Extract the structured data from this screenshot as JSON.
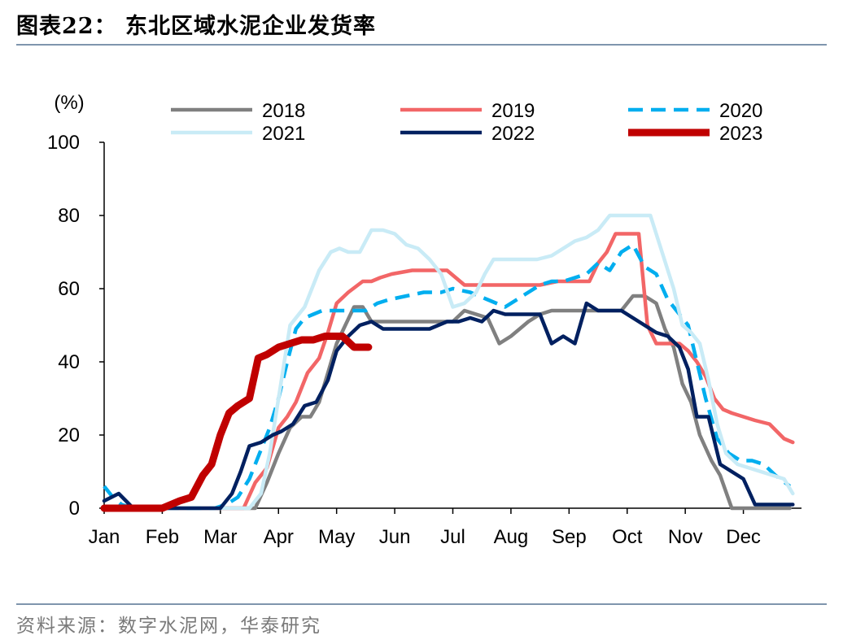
{
  "header": {
    "title": "图表22： 东北区域水泥企业发货率"
  },
  "footer": {
    "source": "资料来源：数字水泥网，华泰研究"
  },
  "chart_data": {
    "type": "line",
    "ylabel": "(%)",
    "ylim": [
      0,
      100
    ],
    "yticks": [
      0,
      20,
      40,
      60,
      80,
      100
    ],
    "xlim": [
      0,
      12
    ],
    "xticks": [
      {
        "label": "Jan",
        "x": 0
      },
      {
        "label": "Feb",
        "x": 1
      },
      {
        "label": "Mar",
        "x": 2
      },
      {
        "label": "Apr",
        "x": 3
      },
      {
        "label": "May",
        "x": 4
      },
      {
        "label": "Jun",
        "x": 5
      },
      {
        "label": "Jul",
        "x": 6
      },
      {
        "label": "Aug",
        "x": 7
      },
      {
        "label": "Sep",
        "x": 8
      },
      {
        "label": "Oct",
        "x": 9
      },
      {
        "label": "Nov",
        "x": 10
      },
      {
        "label": "Dec",
        "x": 11
      }
    ],
    "legend_position": "top",
    "series": [
      {
        "name": "2018",
        "color": "#808080",
        "style": "solid",
        "width": 4.5,
        "x": [
          0.0,
          1.0,
          2.0,
          2.2,
          2.45,
          2.6,
          2.8,
          3.0,
          3.2,
          3.4,
          3.55,
          3.7,
          3.85,
          4.0,
          4.15,
          4.3,
          4.45,
          4.6,
          4.75,
          4.9,
          5.05,
          5.2,
          5.5,
          5.8,
          6.0,
          6.2,
          6.4,
          6.6,
          6.8,
          7.0,
          7.3,
          7.5,
          7.7,
          7.9,
          8.1,
          8.3,
          8.5,
          8.7,
          8.9,
          9.1,
          9.3,
          9.5,
          9.65,
          9.8,
          9.95,
          10.1,
          10.25,
          10.45,
          10.6,
          10.8,
          11.0,
          11.2,
          11.4,
          11.6,
          11.8
        ],
        "y": [
          0,
          0,
          0,
          0,
          0,
          0,
          7,
          15,
          22,
          25,
          25,
          29,
          37,
          45,
          50,
          55,
          55,
          51,
          51,
          51,
          51,
          51,
          51,
          51,
          51,
          54,
          53,
          52,
          45,
          47,
          51,
          53,
          54,
          54,
          54,
          54,
          54,
          54,
          54,
          58,
          58,
          56,
          49,
          44,
          34,
          29,
          20,
          13,
          9,
          0,
          0,
          0,
          0,
          0,
          0
        ]
      },
      {
        "name": "2019",
        "color": "#f26667",
        "style": "solid",
        "width": 4.5,
        "x": [
          0.0,
          1.0,
          2.0,
          2.2,
          2.4,
          2.6,
          2.8,
          3.0,
          3.15,
          3.3,
          3.5,
          3.7,
          3.85,
          4.0,
          4.2,
          4.45,
          4.6,
          4.75,
          4.95,
          5.3,
          5.6,
          5.9,
          6.2,
          6.5,
          6.8,
          7.0,
          7.3,
          7.5,
          7.8,
          8.0,
          8.2,
          8.35,
          8.5,
          8.65,
          8.8,
          9.0,
          9.2,
          9.35,
          9.5,
          9.7,
          9.9,
          10.05,
          10.2,
          10.35,
          10.5,
          10.65,
          10.8,
          11.0,
          11.2,
          11.45,
          11.7,
          11.85
        ],
        "y": [
          0,
          0,
          0,
          0,
          0,
          7,
          11,
          22,
          25,
          29,
          37,
          41,
          48,
          56,
          59,
          62,
          62,
          63,
          64,
          65,
          65,
          65,
          61,
          61,
          61,
          61,
          61,
          61,
          62,
          62,
          62,
          62,
          67,
          70,
          75,
          75,
          75,
          50,
          45,
          45,
          45,
          43,
          40,
          36,
          30,
          27,
          26,
          25,
          24,
          23,
          19,
          18
        ]
      },
      {
        "name": "2020",
        "color": "#00aeef",
        "style": "dashed",
        "width": 4.5,
        "x": [
          0.0,
          0.15,
          0.3,
          0.5,
          1.0,
          1.5,
          1.9,
          2.1,
          2.3,
          2.5,
          2.7,
          2.85,
          3.0,
          3.15,
          3.3,
          3.45,
          3.6,
          3.75,
          3.9,
          4.1,
          4.3,
          4.5,
          4.7,
          4.9,
          5.2,
          5.5,
          5.8,
          6.0,
          6.3,
          6.6,
          6.9,
          7.1,
          7.3,
          7.5,
          7.7,
          7.9,
          8.1,
          8.3,
          8.5,
          8.7,
          8.9,
          9.1,
          9.3,
          9.5,
          9.7,
          9.9,
          10.05,
          10.2,
          10.35,
          10.55,
          10.75,
          10.95,
          11.15,
          11.35,
          11.55,
          11.8
        ],
        "y": [
          6,
          3,
          1,
          0,
          0,
          0,
          0,
          1,
          3,
          8,
          16,
          22,
          30,
          40,
          49,
          52,
          53,
          54,
          54,
          54,
          54,
          54,
          56,
          57,
          58,
          59,
          59,
          60,
          59,
          57,
          55,
          57,
          59,
          61,
          62,
          62,
          63,
          64,
          67,
          65,
          70,
          72,
          66,
          64,
          57,
          53,
          50,
          40,
          30,
          19,
          15,
          13,
          13,
          12,
          9,
          6
        ]
      },
      {
        "name": "2021",
        "color": "#c9ebf6",
        "style": "solid",
        "width": 4.5,
        "x": [
          0.0,
          1.0,
          1.9,
          2.1,
          2.3,
          2.5,
          2.7,
          2.85,
          3.0,
          3.2,
          3.45,
          3.7,
          3.9,
          4.05,
          4.2,
          4.4,
          4.6,
          4.8,
          5.0,
          5.2,
          5.4,
          5.6,
          5.8,
          6.0,
          6.2,
          6.4,
          6.55,
          6.7,
          6.85,
          7.0,
          7.2,
          7.45,
          7.7,
          7.9,
          8.1,
          8.3,
          8.5,
          8.7,
          8.95,
          9.2,
          9.4,
          9.6,
          9.8,
          9.95,
          10.1,
          10.25,
          10.4,
          10.55,
          10.7,
          10.9,
          11.1,
          11.3,
          11.5,
          11.7,
          11.85
        ],
        "y": [
          0,
          0,
          0,
          0,
          0,
          0,
          4,
          15,
          30,
          50,
          55,
          65,
          70,
          71,
          70,
          70,
          76,
          76,
          75,
          72,
          71,
          68,
          64,
          55,
          56,
          59,
          64,
          68,
          68,
          68,
          68,
          68,
          69,
          71,
          73,
          74,
          76,
          80,
          80,
          80,
          80,
          70,
          60,
          50,
          48,
          45,
          35,
          23,
          15,
          12,
          11,
          10,
          9,
          8,
          4
        ]
      },
      {
        "name": "2022",
        "color": "#002060",
        "style": "solid",
        "width": 4.5,
        "x": [
          0.0,
          0.25,
          0.5,
          1.0,
          1.5,
          2.0,
          2.2,
          2.35,
          2.5,
          2.7,
          2.9,
          3.05,
          3.25,
          3.45,
          3.65,
          3.85,
          4.0,
          4.2,
          4.4,
          4.6,
          4.8,
          5.0,
          5.3,
          5.6,
          5.9,
          6.1,
          6.3,
          6.5,
          6.7,
          6.9,
          7.1,
          7.3,
          7.5,
          7.7,
          7.9,
          8.1,
          8.3,
          8.5,
          8.7,
          8.9,
          9.1,
          9.3,
          9.5,
          9.7,
          9.9,
          10.05,
          10.2,
          10.4,
          10.6,
          10.8,
          11.0,
          11.2,
          11.4,
          11.6,
          11.85
        ],
        "y": [
          2,
          4,
          0,
          0,
          0,
          0,
          4,
          10,
          17,
          18,
          20,
          21,
          23,
          28,
          29,
          35,
          43,
          47,
          50,
          51,
          49,
          49,
          49,
          49,
          51,
          51,
          52,
          51,
          54,
          53,
          53,
          53,
          53,
          45,
          47,
          45,
          56,
          54,
          54,
          54,
          52,
          50,
          48,
          47,
          44,
          38,
          25,
          25,
          12,
          10,
          8,
          1,
          1,
          1,
          1
        ]
      },
      {
        "name": "2023",
        "color": "#c00000",
        "style": "solid",
        "width": 9,
        "x": [
          0.0,
          0.5,
          1.0,
          1.15,
          1.3,
          1.5,
          1.7,
          1.85,
          2.0,
          2.15,
          2.3,
          2.5,
          2.65,
          2.8,
          3.0,
          3.2,
          3.4,
          3.6,
          3.8,
          3.95,
          4.1,
          4.3,
          4.55
        ],
        "y": [
          0,
          0,
          0,
          1,
          2,
          3,
          9,
          12,
          20,
          26,
          28,
          30,
          41,
          42,
          44,
          45,
          46,
          46,
          47,
          47,
          47,
          44,
          44
        ]
      }
    ]
  }
}
